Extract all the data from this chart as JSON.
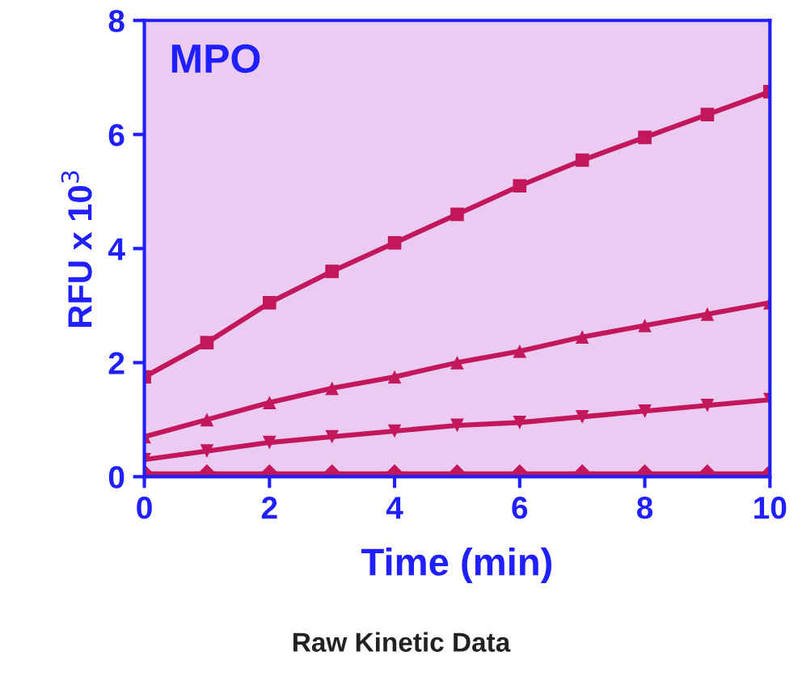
{
  "chart_data": {
    "type": "line",
    "xlabel": "Time (min)",
    "ylabel": "RFU x 10$^{3}$",
    "x": [
      0,
      1,
      2,
      3,
      4,
      5,
      6,
      7,
      8,
      9,
      10
    ],
    "series": [
      {
        "color": "#c2185b",
        "marker": "square",
        "values": [
          1.75,
          2.35,
          3.05,
          3.6,
          4.1,
          4.6,
          5.1,
          5.55,
          5.95,
          6.35,
          6.75
        ]
      },
      {
        "color": "#c2185b",
        "marker": "triangle",
        "values": [
          0.7,
          1.0,
          1.3,
          1.55,
          1.75,
          2.0,
          2.2,
          2.45,
          2.65,
          2.85,
          3.05
        ]
      },
      {
        "color": "#c2185b",
        "marker": "triangle_down",
        "values": [
          0.3,
          0.45,
          0.6,
          0.7,
          0.8,
          0.9,
          0.95,
          1.05,
          1.15,
          1.25,
          1.35
        ]
      },
      {
        "color": "#c2185b",
        "marker": "diamond",
        "values": [
          0.05,
          0.05,
          0.05,
          0.05,
          0.05,
          0.05,
          0.05,
          0.05,
          0.05,
          0.05,
          0.05
        ]
      }
    ],
    "xlim": [
      0,
      10
    ],
    "ylim": [
      0,
      8
    ],
    "xticks": [
      0,
      2,
      4,
      6,
      8,
      10
    ],
    "yticks": [
      0,
      2,
      4,
      6,
      8
    ],
    "grid": false,
    "line_style": "solid",
    "annotations": [
      "MPO",
      "Raw Kinetic Data"
    ]
  }
}
